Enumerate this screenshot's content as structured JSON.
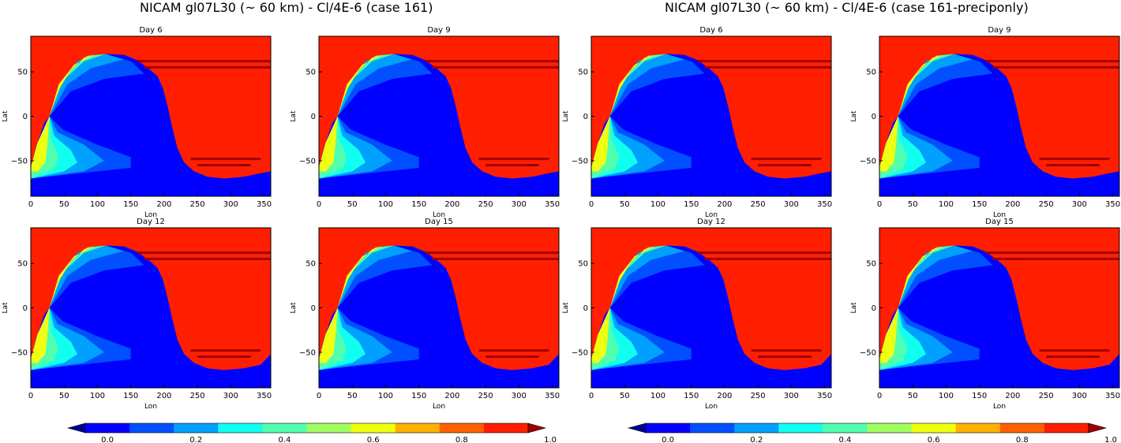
{
  "suptitles": [
    "NICAM gl07L30 (~ 60 km) - Cl/4E-6 (case 161)",
    "NICAM gl07L30 (~ 60 km) - Cl/4E-6 (case 161-preciponly)"
  ],
  "colors": {
    "levels": [
      "#00008f",
      "#0000ff",
      "#0050ff",
      "#00a0ff",
      "#10ffef",
      "#50ffaf",
      "#a0ff60",
      "#efff10",
      "#ffb000",
      "#ff6000",
      "#ff1f00",
      "#a00000"
    ],
    "background_red": "#ff1f00",
    "band_red": "#a00000",
    "deep_blue": "#0000ff"
  },
  "chart_data": [
    {
      "type": "heatmap",
      "title": "Day 6",
      "xlabel": "Lon",
      "ylabel": "Lat",
      "xlim": [
        0,
        360
      ],
      "ylim": [
        -90,
        90
      ],
      "xticks": [
        "0",
        "50",
        "100",
        "150",
        "200",
        "250",
        "300",
        "350"
      ],
      "yticks": [
        "50",
        "0",
        "−50"
      ]
    },
    {
      "type": "heatmap",
      "title": "Day 9",
      "xlabel": "Lon",
      "ylabel": "Lat",
      "xlim": [
        0,
        360
      ],
      "ylim": [
        -90,
        90
      ],
      "xticks": [
        "0",
        "50",
        "100",
        "150",
        "200",
        "250",
        "300",
        "350"
      ],
      "yticks": [
        "50",
        "0",
        "−50"
      ]
    },
    {
      "type": "heatmap",
      "title": "Day 12",
      "xlabel": "Lon",
      "ylabel": "Lat",
      "xlim": [
        0,
        360
      ],
      "ylim": [
        -90,
        90
      ],
      "xticks": [
        "0",
        "50",
        "100",
        "150",
        "200",
        "250",
        "300",
        "350"
      ],
      "yticks": [
        "50",
        "0",
        "−50"
      ]
    },
    {
      "type": "heatmap",
      "title": "Day 15",
      "xlabel": "Lon",
      "ylabel": "Lat",
      "xlim": [
        0,
        360
      ],
      "ylim": [
        -90,
        90
      ],
      "xticks": [
        "0",
        "50",
        "100",
        "150",
        "200",
        "250",
        "300",
        "350"
      ],
      "yticks": [
        "50",
        "0",
        "−50"
      ]
    },
    {
      "type": "heatmap",
      "title": "Day 6",
      "xlabel": "Lon",
      "ylabel": "Lat",
      "xlim": [
        0,
        360
      ],
      "ylim": [
        -90,
        90
      ],
      "xticks": [
        "0",
        "50",
        "100",
        "150",
        "200",
        "250",
        "300",
        "350"
      ],
      "yticks": [
        "50",
        "0",
        "−50"
      ]
    },
    {
      "type": "heatmap",
      "title": "Day 9",
      "xlabel": "Lon",
      "ylabel": "Lat",
      "xlim": [
        0,
        360
      ],
      "ylim": [
        -90,
        90
      ],
      "xticks": [
        "0",
        "50",
        "100",
        "150",
        "200",
        "250",
        "300",
        "350"
      ],
      "yticks": [
        "50",
        "0",
        "−50"
      ]
    },
    {
      "type": "heatmap",
      "title": "Day 12",
      "xlabel": "Lon",
      "ylabel": "Lat",
      "xlim": [
        0,
        360
      ],
      "ylim": [
        -90,
        90
      ],
      "xticks": [
        "0",
        "50",
        "100",
        "150",
        "200",
        "250",
        "300",
        "350"
      ],
      "yticks": [
        "50",
        "0",
        "−50"
      ]
    },
    {
      "type": "heatmap",
      "title": "Day 15",
      "xlabel": "Lon",
      "ylabel": "Lat",
      "xlim": [
        0,
        360
      ],
      "ylim": [
        -90,
        90
      ],
      "xticks": [
        "0",
        "50",
        "100",
        "150",
        "200",
        "250",
        "300",
        "350"
      ],
      "yticks": [
        "50",
        "0",
        "−50"
      ]
    }
  ],
  "colorbars": [
    {
      "boundaries": [
        -0.1,
        0,
        0.1,
        0.2,
        0.3,
        0.4,
        0.5,
        0.6,
        0.7,
        0.8,
        0.9,
        1.0,
        1.1
      ],
      "tick_labels": [
        "0.0",
        "0.2",
        "0.4",
        "0.6",
        "0.8",
        "1.0"
      ],
      "extend": "both"
    },
    {
      "boundaries": [
        -0.1,
        0,
        0.1,
        0.2,
        0.3,
        0.4,
        0.5,
        0.6,
        0.7,
        0.8,
        0.9,
        1.0,
        1.1
      ],
      "tick_labels": [
        "0.0",
        "0.2",
        "0.4",
        "0.6",
        "0.8",
        "1.0"
      ],
      "extend": "both"
    }
  ]
}
